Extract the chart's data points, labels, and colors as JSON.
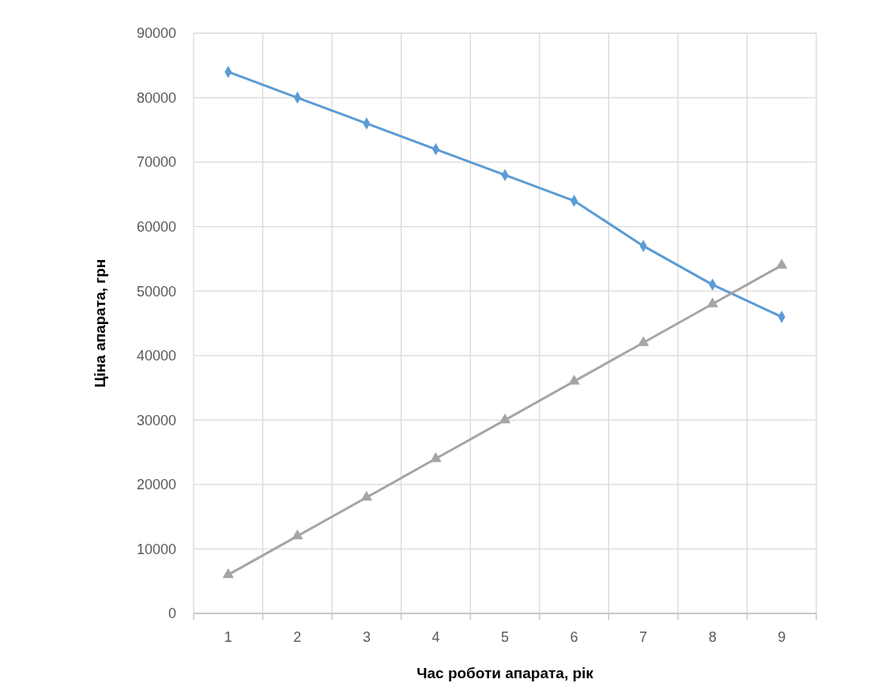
{
  "chart_data": {
    "type": "line",
    "xlabel": "Час роботи апарата, рік",
    "ylabel": "Ціна апарата, грн",
    "categories": [
      "1",
      "2",
      "3",
      "4",
      "5",
      "6",
      "7",
      "8",
      "9"
    ],
    "series": [
      {
        "color": "#5b9bd5",
        "marker": "diamond",
        "values": [
          84000,
          80000,
          76000,
          72000,
          68000,
          64000,
          57000,
          51000,
          46000
        ]
      },
      {
        "color": "#a5a5a5",
        "marker": "triangle",
        "values": [
          6000,
          12000,
          18000,
          24000,
          30000,
          36000,
          42000,
          48000,
          54000
        ]
      }
    ],
    "ylim": [
      0,
      90000
    ],
    "yticks": [
      0,
      10000,
      20000,
      30000,
      40000,
      50000,
      60000,
      70000,
      80000,
      90000
    ],
    "grid": true,
    "line_style": "solid"
  }
}
